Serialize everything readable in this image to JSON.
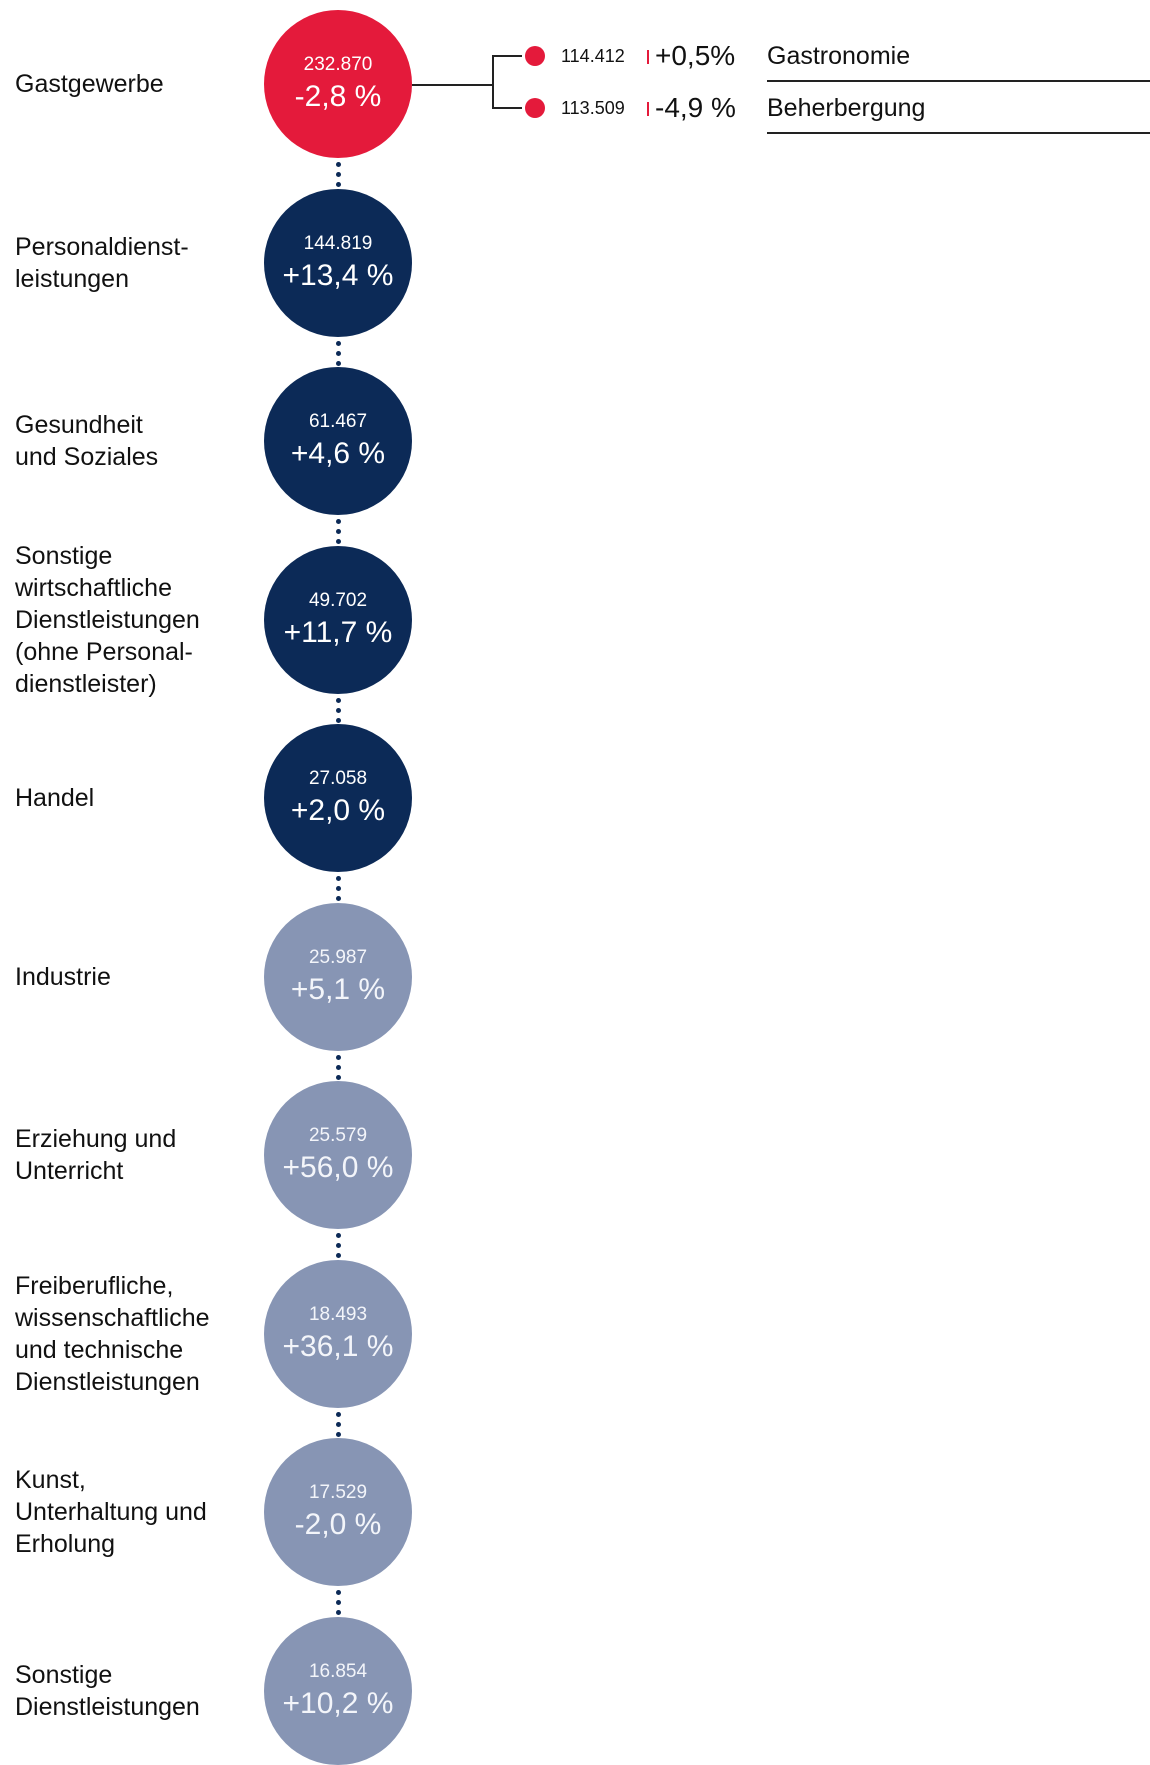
{
  "colors": {
    "highlight": "#e41a3b",
    "dark": "#0c2a57",
    "light": "#8795b4",
    "connector_dots": "#0c2a57",
    "text": "#111111"
  },
  "categories": [
    {
      "label": "Gastgewerbe",
      "count": "232.870",
      "change": "-2,8 %",
      "tone": "highlight"
    },
    {
      "label": "Personaldienst-\nleistungen",
      "count": "144.819",
      "change": "+13,4 %",
      "tone": "dark"
    },
    {
      "label": "Gesundheit\nund Soziales",
      "count": "61.467",
      "change": "+4,6 %",
      "tone": "dark"
    },
    {
      "label": "Sonstige\nwirtschaftliche\nDienstleistungen\n(ohne Personal-\ndienstleister)",
      "count": "49.702",
      "change": "+11,7 %",
      "tone": "dark"
    },
    {
      "label": "Handel",
      "count": "27.058",
      "change": "+2,0 %",
      "tone": "dark"
    },
    {
      "label": "Industrie",
      "count": "25.987",
      "change": "+5,1 %",
      "tone": "light"
    },
    {
      "label": "Erziehung und\nUnterricht",
      "count": "25.579",
      "change": "+56,0 %",
      "tone": "light"
    },
    {
      "label": "Freiberufliche,\nwissenschaftliche\nund technische\nDienstleistungen",
      "count": "18.493",
      "change": "+36,1 %",
      "tone": "light"
    },
    {
      "label": "Kunst,\nUnterhaltung und\nErholung",
      "count": "17.529",
      "change": "-2,0 %",
      "tone": "light"
    },
    {
      "label": "Sonstige\nDienstleistungen",
      "count": "16.854",
      "change": "+10,2 %",
      "tone": "light"
    }
  ],
  "subcategories": [
    {
      "name": "Gastronomie",
      "count": "114.412",
      "change": "+0,5%"
    },
    {
      "name": "Beherbergung",
      "count": "113.509",
      "change": "-4,9 %"
    }
  ]
}
